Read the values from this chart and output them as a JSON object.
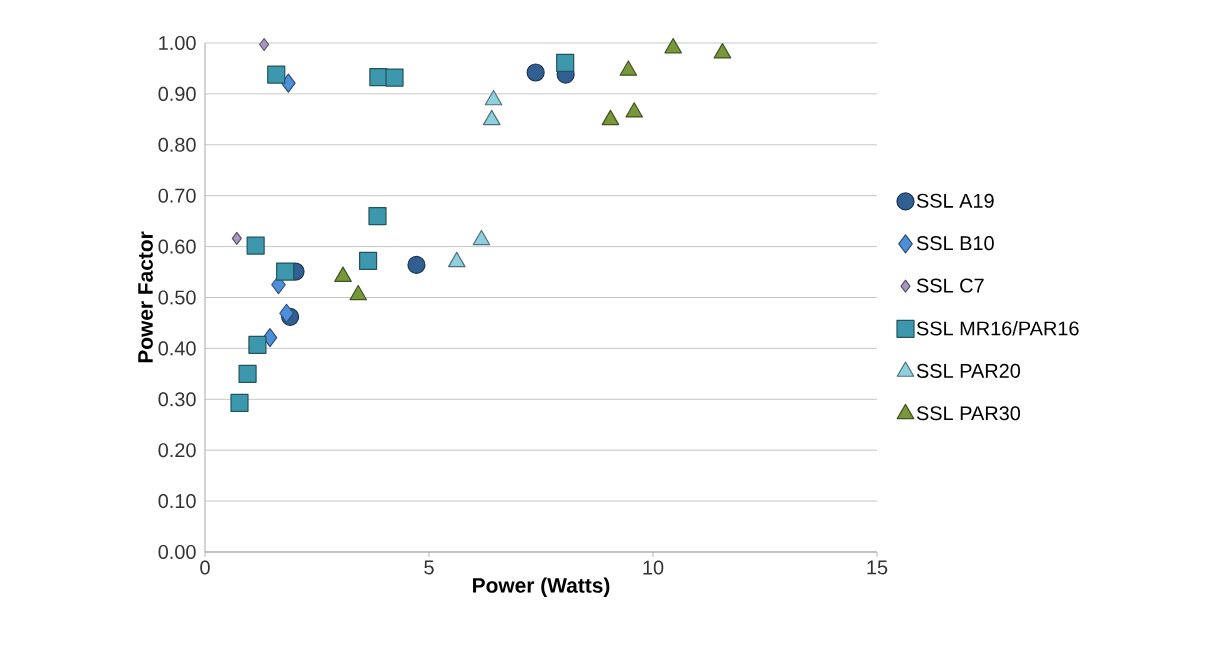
{
  "chart_data": {
    "type": "scatter",
    "xlabel": "Power (Watts)",
    "ylabel": "Power Factor",
    "xlim": [
      0,
      15
    ],
    "xticks": [
      0,
      5,
      10,
      15
    ],
    "ylim": [
      0,
      1
    ],
    "yticks": [
      {
        "value": 0,
        "label": "0.00"
      },
      {
        "value": 0.1,
        "label": "0.10"
      },
      {
        "value": 0.2,
        "label": "0.20"
      },
      {
        "value": 0.3,
        "label": "0.30"
      },
      {
        "value": 0.4,
        "label": "0.40"
      },
      {
        "value": 0.5,
        "label": "0.50"
      },
      {
        "value": 0.6,
        "label": "0.60"
      },
      {
        "value": 0.7,
        "label": "0.70"
      },
      {
        "value": 0.8,
        "label": "0.80"
      },
      {
        "value": 0.9,
        "label": "0.90"
      },
      {
        "value": 1.0,
        "label": "1.00"
      }
    ],
    "grid": "y",
    "legend": "right",
    "series": [
      {
        "name": "SSL A19",
        "color": "#325f91",
        "marker": "circle",
        "x": [
          7.38,
          8.05,
          4.72,
          2.02,
          1.9
        ],
        "values": [
          0.942,
          0.938,
          0.564,
          0.551,
          0.462
        ]
      },
      {
        "name": "SSL B10",
        "color": "#4f8fda",
        "marker": "diamond",
        "x": [
          1.86,
          1.64,
          1.82,
          1.45
        ],
        "values": [
          0.921,
          0.525,
          0.469,
          0.421
        ]
      },
      {
        "name": "SSL C7",
        "color": "#a797bf",
        "marker": "diamond",
        "x": [
          1.32,
          0.71
        ],
        "values": [
          0.997,
          0.616
        ]
      },
      {
        "name": "SSL MR16/PAR16",
        "color": "#3d98ae",
        "marker": "square",
        "x": [
          1.59,
          3.87,
          4.23,
          8.04,
          3.85,
          1.13,
          3.64,
          1.79,
          1.17,
          0.95,
          0.77
        ],
        "values": [
          0.938,
          0.933,
          0.932,
          0.961,
          0.66,
          0.602,
          0.572,
          0.551,
          0.407,
          0.35,
          0.293
        ]
      },
      {
        "name": "SSL PAR20",
        "color": "#8fcfde",
        "marker": "triangle",
        "x": [
          6.44,
          6.4,
          6.17,
          5.62
        ],
        "values": [
          0.888,
          0.849,
          0.613,
          0.57
        ]
      },
      {
        "name": "SSL PAR30",
        "color": "#77973a",
        "marker": "triangle",
        "x": [
          9.45,
          10.45,
          11.55,
          9.05,
          9.58,
          3.08,
          3.42
        ],
        "values": [
          0.946,
          0.99,
          0.98,
          0.849,
          0.864,
          0.541,
          0.505
        ]
      }
    ]
  }
}
